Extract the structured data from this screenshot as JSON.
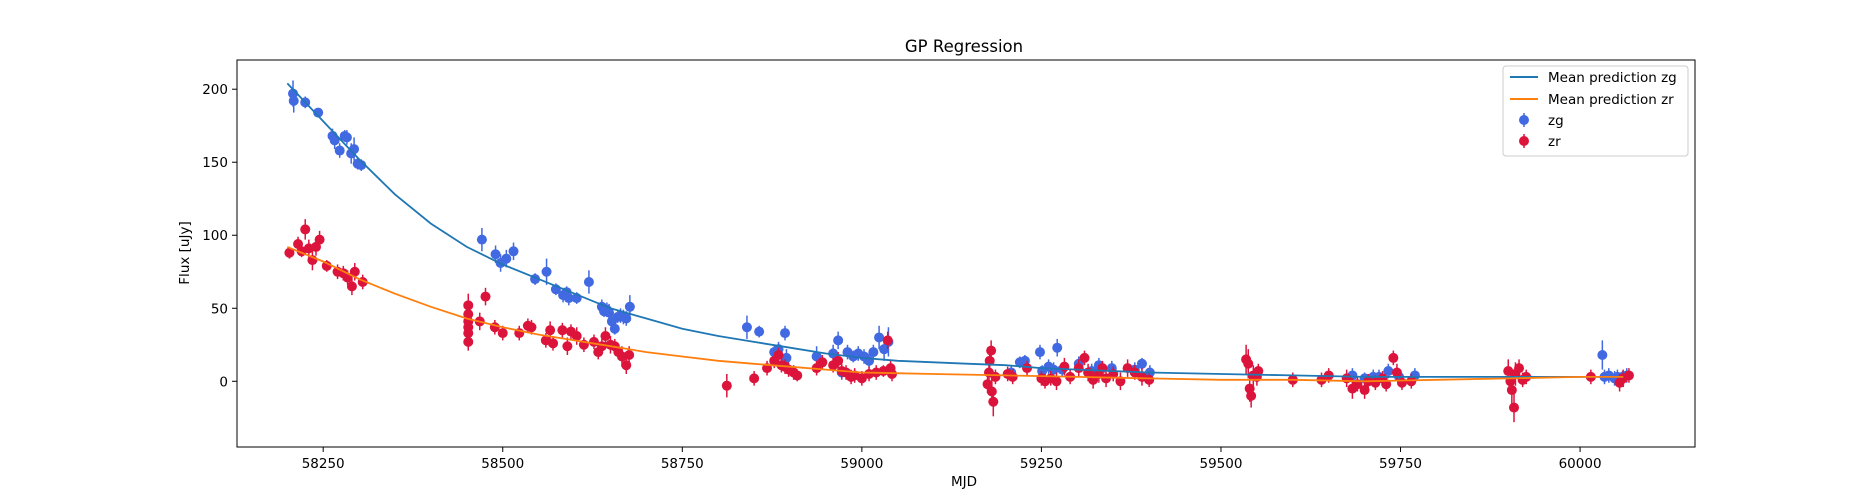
{
  "chart_data": {
    "type": "scatter",
    "title": "GP Regression",
    "xlabel": "MJD",
    "ylabel": "Flux [uJy]",
    "xlim": [
      58130,
      60160
    ],
    "ylim": [
      -45,
      220
    ],
    "xticks": [
      58250,
      58500,
      58750,
      59000,
      59250,
      59500,
      59750,
      60000
    ],
    "yticks": [
      0,
      50,
      100,
      150,
      200
    ],
    "grid": false,
    "legend_position": "top-right",
    "lines": [
      {
        "name": "Mean prediction zg",
        "color": "#1f77b4",
        "x": [
          58200,
          58250,
          58300,
          58350,
          58400,
          58450,
          58500,
          58550,
          58600,
          58650,
          58700,
          58750,
          58800,
          58850,
          58900,
          58950,
          59000,
          59050,
          59100,
          59150,
          59200,
          59250,
          59300,
          59400,
          59500,
          59600,
          59700,
          59800,
          59900,
          60000,
          60060
        ],
        "y": [
          204,
          178,
          152,
          128,
          108,
          92,
          80,
          70,
          60,
          50,
          43,
          36,
          31,
          27,
          23,
          19,
          16,
          14,
          13,
          12,
          11,
          9,
          8,
          6,
          5,
          4,
          3,
          3,
          3,
          3,
          3
        ]
      },
      {
        "name": "Mean prediction zr",
        "color": "#ff7f0e",
        "x": [
          58200,
          58250,
          58300,
          58350,
          58400,
          58450,
          58500,
          58550,
          58600,
          58650,
          58700,
          58750,
          58800,
          58850,
          58900,
          58950,
          59000,
          59100,
          59200,
          59300,
          59400,
          59500,
          59600,
          59700,
          59800,
          59900,
          60000,
          60060
        ],
        "y": [
          92,
          82,
          70,
          60,
          51,
          43,
          37,
          32,
          28,
          24,
          20,
          17,
          14,
          12,
          10,
          8,
          6,
          5,
          4,
          3,
          2,
          1,
          1,
          0,
          1,
          2,
          3,
          3
        ]
      }
    ],
    "series": [
      {
        "name": "zg",
        "color": "#4169e1",
        "points": [
          [
            58208,
            197,
            9
          ],
          [
            58209,
            192,
            8
          ],
          [
            58225,
            191,
            4
          ],
          [
            58243,
            184,
            3
          ],
          [
            58263,
            168,
            5
          ],
          [
            58266,
            165,
            6
          ],
          [
            58273,
            158,
            5
          ],
          [
            58280,
            168,
            4
          ],
          [
            58283,
            167,
            5
          ],
          [
            58289,
            156,
            7
          ],
          [
            58293,
            159,
            8
          ],
          [
            58298,
            149,
            4
          ],
          [
            58303,
            148,
            4
          ],
          [
            58471,
            97,
            8
          ],
          [
            58490,
            87,
            6
          ],
          [
            58497,
            81,
            6
          ],
          [
            58505,
            84,
            6
          ],
          [
            58515,
            89,
            6
          ],
          [
            58545,
            70,
            4
          ],
          [
            58561,
            75,
            9
          ],
          [
            58574,
            63,
            4
          ],
          [
            58584,
            59,
            5
          ],
          [
            58589,
            61,
            4
          ],
          [
            58592,
            57,
            5
          ],
          [
            58603,
            57,
            4
          ],
          [
            58620,
            68,
            8
          ],
          [
            58638,
            51,
            5
          ],
          [
            58641,
            48,
            4
          ],
          [
            58645,
            49,
            5
          ],
          [
            58648,
            47,
            6
          ],
          [
            58652,
            41,
            6
          ],
          [
            58656,
            36,
            4
          ],
          [
            58660,
            44,
            4
          ],
          [
            58664,
            45,
            5
          ],
          [
            58668,
            44,
            5
          ],
          [
            58672,
            43,
            5
          ],
          [
            58677,
            51,
            8
          ],
          [
            58840,
            37,
            8
          ],
          [
            58857,
            34,
            4
          ],
          [
            58878,
            20,
            5
          ],
          [
            58884,
            22,
            5
          ],
          [
            58893,
            33,
            5
          ],
          [
            58895,
            16,
            6
          ],
          [
            58937,
            17,
            7
          ],
          [
            58960,
            19,
            6
          ],
          [
            58967,
            28,
            6
          ],
          [
            58972,
            6,
            5
          ],
          [
            58980,
            20,
            5
          ],
          [
            58988,
            17,
            4
          ],
          [
            58995,
            19,
            5
          ],
          [
            59003,
            17,
            5
          ],
          [
            59010,
            14,
            5
          ],
          [
            59016,
            20,
            5
          ],
          [
            59024,
            30,
            8
          ],
          [
            59031,
            22,
            8
          ],
          [
            59037,
            27,
            10
          ],
          [
            59208,
            6,
            5
          ],
          [
            59220,
            13,
            4
          ],
          [
            59227,
            14,
            4
          ],
          [
            59248,
            20,
            5
          ],
          [
            59251,
            7,
            4
          ],
          [
            59260,
            10,
            5
          ],
          [
            59267,
            8,
            5
          ],
          [
            59272,
            23,
            6
          ],
          [
            59279,
            8,
            5
          ],
          [
            59302,
            12,
            5
          ],
          [
            59320,
            7,
            5
          ],
          [
            59330,
            11,
            5
          ],
          [
            59348,
            9,
            5
          ],
          [
            59380,
            8,
            5
          ],
          [
            59390,
            12,
            4
          ],
          [
            59401,
            6,
            5
          ],
          [
            59683,
            4,
            5
          ],
          [
            59700,
            2,
            4
          ],
          [
            59712,
            3,
            5
          ],
          [
            59720,
            3,
            5
          ],
          [
            59733,
            7,
            5
          ],
          [
            59748,
            3,
            5
          ],
          [
            59770,
            4,
            5
          ],
          [
            60031,
            18,
            10
          ],
          [
            60034,
            3,
            5
          ],
          [
            60040,
            4,
            5
          ],
          [
            60048,
            2,
            5
          ],
          [
            60052,
            3,
            5
          ],
          [
            60059,
            3,
            4
          ],
          [
            60065,
            4,
            5
          ]
        ]
      },
      {
        "name": "zr",
        "color": "#dc143c",
        "points": [
          [
            58203,
            88,
            4
          ],
          [
            58215,
            94,
            5
          ],
          [
            58220,
            89,
            4
          ],
          [
            58225,
            104,
            7
          ],
          [
            58230,
            91,
            6
          ],
          [
            58235,
            83,
            7
          ],
          [
            58240,
            92,
            6
          ],
          [
            58245,
            97,
            6
          ],
          [
            58255,
            79,
            4
          ],
          [
            58270,
            75,
            5
          ],
          [
            58278,
            74,
            5
          ],
          [
            58284,
            71,
            5
          ],
          [
            58290,
            65,
            6
          ],
          [
            58294,
            75,
            6
          ],
          [
            58305,
            68,
            5
          ],
          [
            58452,
            52,
            8
          ],
          [
            58452,
            46,
            8
          ],
          [
            58452,
            41,
            7
          ],
          [
            58452,
            37,
            7
          ],
          [
            58452,
            33,
            6
          ],
          [
            58452,
            27,
            6
          ],
          [
            58468,
            41,
            6
          ],
          [
            58476,
            58,
            6
          ],
          [
            58489,
            37,
            5
          ],
          [
            58500,
            33,
            5
          ],
          [
            58523,
            33,
            5
          ],
          [
            58535,
            38,
            5
          ],
          [
            58540,
            37,
            5
          ],
          [
            58560,
            28,
            5
          ],
          [
            58566,
            35,
            6
          ],
          [
            58570,
            26,
            5
          ],
          [
            58583,
            35,
            5
          ],
          [
            58590,
            24,
            6
          ],
          [
            58595,
            34,
            5
          ],
          [
            58603,
            31,
            6
          ],
          [
            58613,
            25,
            5
          ],
          [
            58627,
            27,
            5
          ],
          [
            58633,
            20,
            5
          ],
          [
            58638,
            24,
            5
          ],
          [
            58643,
            31,
            6
          ],
          [
            58650,
            25,
            6
          ],
          [
            58656,
            24,
            5
          ],
          [
            58661,
            20,
            5
          ],
          [
            58666,
            17,
            7
          ],
          [
            58672,
            11,
            6
          ],
          [
            58676,
            18,
            6
          ],
          [
            58812,
            -3,
            8
          ],
          [
            58850,
            2,
            5
          ],
          [
            58868,
            9,
            5
          ],
          [
            58878,
            14,
            5
          ],
          [
            58884,
            18,
            5
          ],
          [
            58888,
            11,
            5
          ],
          [
            58893,
            10,
            5
          ],
          [
            58898,
            8,
            5
          ],
          [
            58905,
            6,
            5
          ],
          [
            58910,
            4,
            4
          ],
          [
            58937,
            9,
            5
          ],
          [
            58945,
            13,
            5
          ],
          [
            58960,
            11,
            5
          ],
          [
            58967,
            14,
            6
          ],
          [
            58972,
            7,
            5
          ],
          [
            58978,
            6,
            5
          ],
          [
            58985,
            3,
            5
          ],
          [
            58990,
            4,
            5
          ],
          [
            59000,
            2,
            5
          ],
          [
            59010,
            5,
            5
          ],
          [
            59020,
            6,
            5
          ],
          [
            59030,
            7,
            4
          ],
          [
            59036,
            28,
            6
          ],
          [
            59040,
            9,
            5
          ],
          [
            59042,
            5,
            5
          ],
          [
            59175,
            -2,
            6
          ],
          [
            59177,
            6,
            7
          ],
          [
            59178,
            14,
            7
          ],
          [
            59180,
            21,
            7
          ],
          [
            59181,
            -7,
            9
          ],
          [
            59183,
            -14,
            10
          ],
          [
            59186,
            3,
            5
          ],
          [
            59203,
            5,
            5
          ],
          [
            59210,
            3,
            5
          ],
          [
            59230,
            9,
            5
          ],
          [
            59250,
            2,
            5
          ],
          [
            59255,
            0,
            5
          ],
          [
            59263,
            2,
            5
          ],
          [
            59271,
            0,
            6
          ],
          [
            59282,
            10,
            6
          ],
          [
            59290,
            3,
            5
          ],
          [
            59302,
            9,
            6
          ],
          [
            59310,
            16,
            5
          ],
          [
            59315,
            6,
            6
          ],
          [
            59322,
            1,
            6
          ],
          [
            59330,
            5,
            6
          ],
          [
            59335,
            9,
            5
          ],
          [
            59340,
            2,
            6
          ],
          [
            59350,
            5,
            5
          ],
          [
            59360,
            0,
            6
          ],
          [
            59370,
            9,
            6
          ],
          [
            59380,
            6,
            5
          ],
          [
            59390,
            3,
            6
          ],
          [
            59400,
            1,
            5
          ],
          [
            59535,
            15,
            10
          ],
          [
            59538,
            12,
            10
          ],
          [
            59540,
            -5,
            9
          ],
          [
            59542,
            -10,
            8
          ],
          [
            59545,
            4,
            7
          ],
          [
            59550,
            3,
            6
          ],
          [
            59552,
            7,
            5
          ],
          [
            59600,
            1,
            5
          ],
          [
            59640,
            1,
            5
          ],
          [
            59650,
            4,
            5
          ],
          [
            59675,
            2,
            6
          ],
          [
            59683,
            -5,
            7
          ],
          [
            59690,
            -2,
            5
          ],
          [
            59700,
            -6,
            6
          ],
          [
            59705,
            0,
            5
          ],
          [
            59715,
            -1,
            5
          ],
          [
            59725,
            2,
            5
          ],
          [
            59730,
            -2,
            5
          ],
          [
            59740,
            16,
            5
          ],
          [
            59745,
            6,
            6
          ],
          [
            59752,
            -1,
            5
          ],
          [
            59765,
            0,
            5
          ],
          [
            59900,
            7,
            8
          ],
          [
            59903,
            0,
            9
          ],
          [
            59905,
            -6,
            10
          ],
          [
            59908,
            -18,
            10
          ],
          [
            59910,
            5,
            8
          ],
          [
            59915,
            9,
            6
          ],
          [
            59920,
            1,
            5
          ],
          [
            59925,
            3,
            5
          ],
          [
            60015,
            3,
            5
          ],
          [
            60055,
            -1,
            6
          ],
          [
            60060,
            2,
            6
          ],
          [
            60068,
            4,
            5
          ]
        ]
      }
    ]
  }
}
